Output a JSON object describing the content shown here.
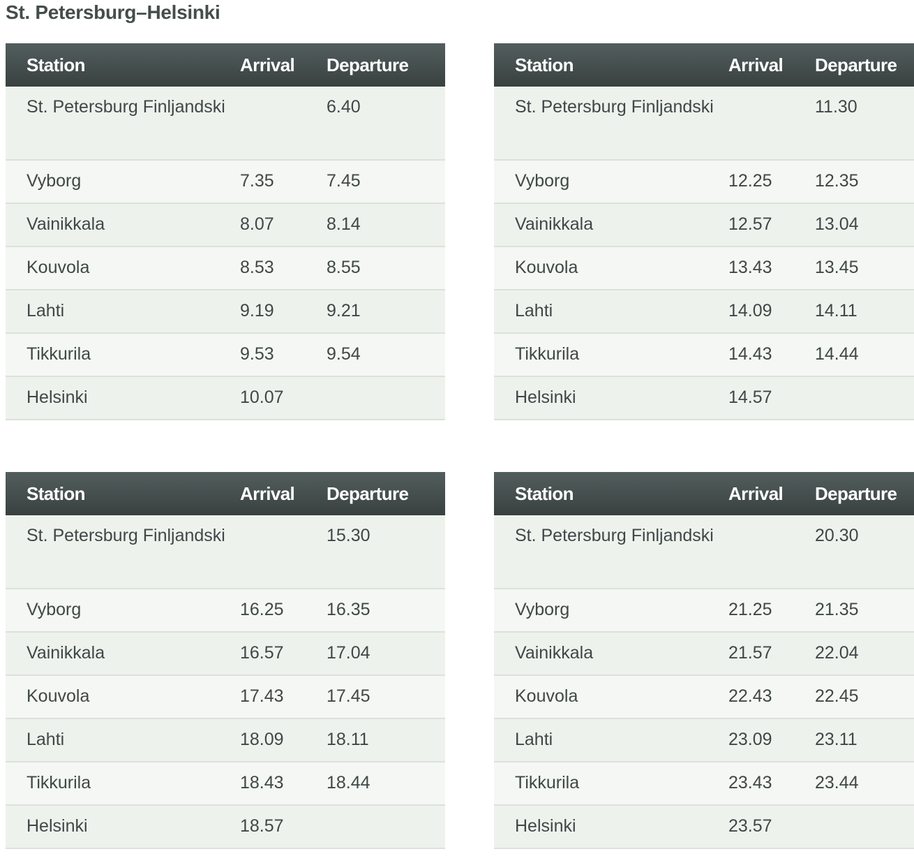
{
  "title": "St. Petersburg–Helsinki",
  "headers": [
    "Station",
    "Arrival",
    "Departure"
  ],
  "colors": {
    "header_top": "#525e5d",
    "header_bottom": "#394140",
    "row_odd": "#eef2ed",
    "row_even": "#f4f7f3",
    "text": "#3f4847"
  },
  "tables": [
    {
      "rows": [
        [
          "St. Petersburg Finljandski",
          "",
          "6.40"
        ],
        [
          "Vyborg",
          "7.35",
          "7.45"
        ],
        [
          "Vainikkala",
          "8.07",
          "8.14"
        ],
        [
          "Kouvola",
          "8.53",
          "8.55"
        ],
        [
          "Lahti",
          "9.19",
          "9.21"
        ],
        [
          "Tikkurila",
          "9.53",
          "9.54"
        ],
        [
          "Helsinki",
          "10.07",
          ""
        ]
      ]
    },
    {
      "rows": [
        [
          "St. Petersburg Finljandski",
          "",
          "11.30"
        ],
        [
          "Vyborg",
          "12.25",
          "12.35"
        ],
        [
          "Vainikkala",
          "12.57",
          "13.04"
        ],
        [
          "Kouvola",
          "13.43",
          "13.45"
        ],
        [
          "Lahti",
          "14.09",
          "14.11"
        ],
        [
          "Tikkurila",
          "14.43",
          "14.44"
        ],
        [
          "Helsinki",
          "14.57",
          ""
        ]
      ]
    },
    {
      "rows": [
        [
          "St. Petersburg Finljandski",
          "",
          "15.30"
        ],
        [
          "Vyborg",
          "16.25",
          "16.35"
        ],
        [
          "Vainikkala",
          "16.57",
          "17.04"
        ],
        [
          "Kouvola",
          "17.43",
          "17.45"
        ],
        [
          "Lahti",
          "18.09",
          "18.11"
        ],
        [
          "Tikkurila",
          "18.43",
          "18.44"
        ],
        [
          "Helsinki",
          "18.57",
          ""
        ]
      ]
    },
    {
      "rows": [
        [
          "St. Petersburg Finljandski",
          "",
          "20.30"
        ],
        [
          "Vyborg",
          "21.25",
          "21.35"
        ],
        [
          "Vainikkala",
          "21.57",
          "22.04"
        ],
        [
          "Kouvola",
          "22.43",
          "22.45"
        ],
        [
          "Lahti",
          "23.09",
          "23.11"
        ],
        [
          "Tikkurila",
          "23.43",
          "23.44"
        ],
        [
          "Helsinki",
          "23.57",
          ""
        ]
      ]
    }
  ]
}
